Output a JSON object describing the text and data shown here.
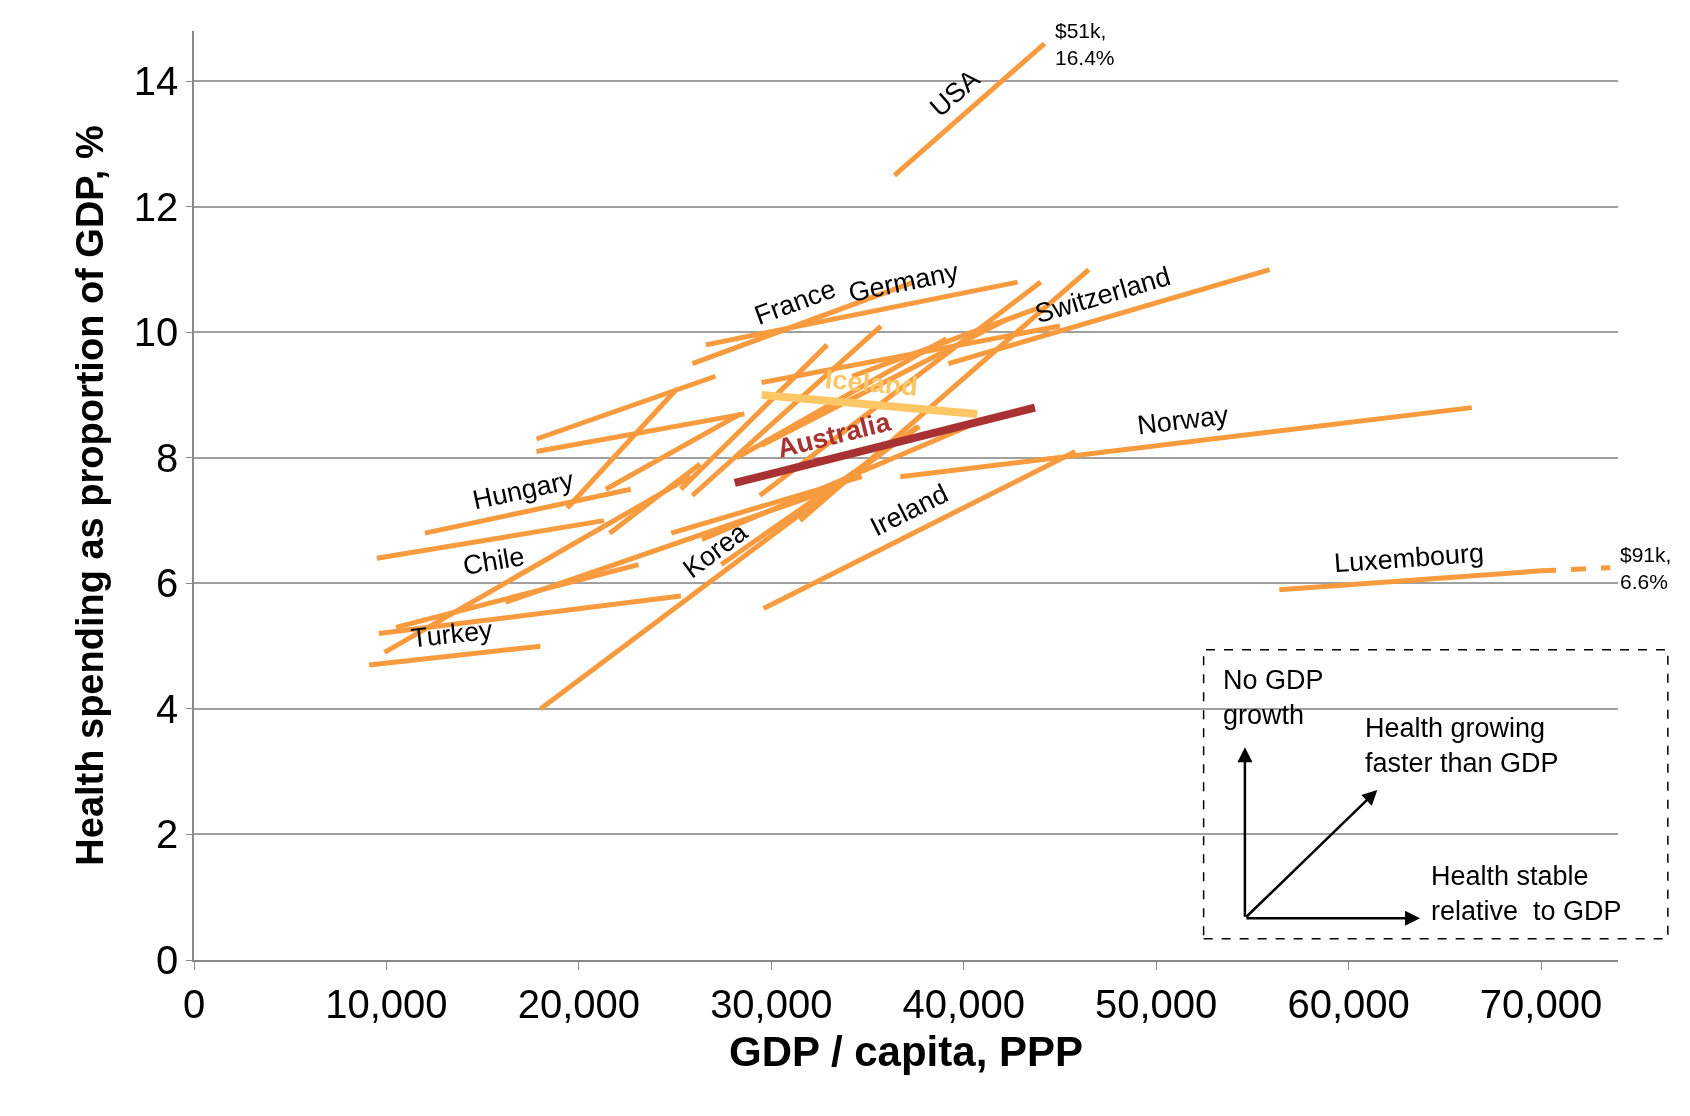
{
  "chart_data": {
    "type": "line",
    "xlabel": "GDP / capita, PPP",
    "ylabel": "Health spending as proportion of GDP, %",
    "xlim": [
      0,
      74000
    ],
    "ylim": [
      0,
      14.8
    ],
    "xticks": [
      0,
      {
        "value": 10000,
        "label": "10,000"
      },
      {
        "value": 20000,
        "label": "20,000"
      },
      {
        "value": 30000,
        "label": "30,000"
      },
      {
        "value": 40000,
        "label": "40,000"
      },
      {
        "value": 50000,
        "label": "50,000"
      },
      {
        "value": 60000,
        "label": "60,000"
      },
      {
        "value": 70000,
        "label": "70,000"
      }
    ],
    "yticks": [
      0,
      2,
      4,
      6,
      8,
      10,
      12,
      14
    ],
    "grid": "y",
    "legend": false,
    "line_style": "solid",
    "series": [
      {
        "x": [
          17800,
          27100
        ],
        "values": [
          8.3,
          9.3
        ],
        "color": "#f79b3e"
      },
      {
        "x": [
          17800,
          28600
        ],
        "values": [
          8.1,
          8.7
        ],
        "color": "#f79b3e"
      },
      {
        "x": [
          19400,
          25100
        ],
        "values": [
          7.2,
          9.1
        ],
        "color": "#f79b3e"
      },
      {
        "x": [
          21400,
          28400
        ],
        "values": [
          7.5,
          8.7
        ],
        "color": "#f79b3e"
      },
      {
        "x": [
          9900,
          25800
        ],
        "values": [
          4.9,
          7.7
        ],
        "color": "#f79b3e"
      },
      {
        "x": [
          21600,
          26300
        ],
        "values": [
          6.8,
          7.9
        ],
        "color": "#f79b3e"
      },
      {
        "x": [
          9600,
          25300
        ],
        "values": [
          5.2,
          5.8
        ],
        "color": "#f79b3e"
      },
      {
        "x": [
          10500,
          23100
        ],
        "values": [
          5.3,
          6.3
        ],
        "color": "#f79b3e"
      },
      {
        "x": [
          16200,
          33200
        ],
        "values": [
          5.7,
          7.5
        ],
        "color": "#f79b3e"
      },
      {
        "x": [
          24800,
          34700
        ],
        "values": [
          6.8,
          7.7
        ],
        "color": "#f79b3e"
      },
      {
        "x": [
          29500,
          45000
        ],
        "values": [
          9.2,
          10.1
        ],
        "color": "#f79b3e"
      },
      {
        "x": [
          34200,
          44000
        ],
        "values": [
          9.3,
          10.4
        ],
        "color": "#f79b3e"
      },
      {
        "x": [
          25900,
          35700
        ],
        "values": [
          7.4,
          10.1
        ],
        "color": "#f79b3e"
      },
      {
        "x": [
          25300,
          32900
        ],
        "values": [
          7.5,
          9.8
        ],
        "color": "#f79b3e"
      },
      {
        "x": [
          29400,
          44000
        ],
        "values": [
          7.4,
          10.8
        ],
        "color": "#f79b3e"
      },
      {
        "x": [
          31500,
          46500
        ],
        "values": [
          7.0,
          11.0
        ],
        "color": "#f79b3e"
      },
      {
        "x": [
          27400,
          37700
        ],
        "values": [
          6.3,
          8.5
        ],
        "color": "#f79b3e"
      },
      {
        "x": [
          26400,
          40200
        ],
        "values": [
          6.7,
          8.5
        ],
        "color": "#f79b3e"
      },
      {
        "x": [
          29500,
          42200
        ],
        "values": [
          8.2,
          10.2
        ],
        "color": "#f79b3e"
      },
      {
        "x": [
          28200,
          39100
        ],
        "values": [
          8.0,
          9.9
        ],
        "color": "#f79b3e"
      },
      {
        "name": "USA",
        "x": [
          36400,
          44200
        ],
        "values": [
          12.5,
          14.6
        ],
        "color": "#f79b3e"
      },
      {
        "name": "Hungary",
        "x": [
          12000,
          22700
        ],
        "values": [
          6.8,
          7.5
        ],
        "color": "#f79b3e"
      },
      {
        "name": "Chile",
        "x": [
          9500,
          21300
        ],
        "values": [
          6.4,
          7.0
        ],
        "color": "#f79b3e"
      },
      {
        "name": "Turkey",
        "x": [
          9100,
          18000
        ],
        "values": [
          4.7,
          5.0
        ],
        "color": "#f79b3e"
      },
      {
        "name": "Korea",
        "x": [
          18000,
          37600
        ],
        "values": [
          4.0,
          8.5
        ],
        "color": "#f79b3e"
      },
      {
        "name": "France",
        "x": [
          25900,
          37400
        ],
        "values": [
          9.5,
          10.8
        ],
        "color": "#f79b3e"
      },
      {
        "name": "Germany",
        "x": [
          26600,
          42800
        ],
        "values": [
          9.8,
          10.8
        ],
        "color": "#f79b3e"
      },
      {
        "name": "Switzerland",
        "x": [
          39200,
          55900
        ],
        "values": [
          9.5,
          11.0
        ],
        "color": "#f79b3e"
      },
      {
        "name": "Norway",
        "x": [
          36700,
          66400
        ],
        "values": [
          7.7,
          8.8
        ],
        "color": "#f79b3e"
      },
      {
        "name": "Ireland",
        "x": [
          29600,
          45800
        ],
        "values": [
          5.6,
          8.1
        ],
        "color": "#f79b3e"
      },
      {
        "name": "Luxembourg",
        "x": [
          56400,
          70000
        ],
        "values": [
          5.9,
          6.2
        ],
        "color": "#f79b3e"
      },
      {
        "x": [
          70000,
          73600
        ],
        "values": [
          6.2,
          6.25
        ],
        "color": "#f79b3e",
        "line_style": "dashed"
      },
      {
        "name": "Iceland",
        "x": [
          29500,
          40700
        ],
        "values": [
          9.0,
          8.7
        ],
        "color": "#fdc765"
      },
      {
        "name": "Australia",
        "x": [
          28100,
          43700
        ],
        "values": [
          7.6,
          8.8
        ],
        "color": "#a83232"
      }
    ],
    "annotations": [
      {
        "text": "$51k,\n16.4%",
        "x": 44200,
        "y": 14.6
      },
      {
        "text": "$91k,\n6.6%",
        "x": 73600,
        "y": 6.25
      },
      "No GDP\ngrowth",
      "Health growing\nfaster than GDP",
      "Health stable\nrelative  to GDP"
    ]
  }
}
